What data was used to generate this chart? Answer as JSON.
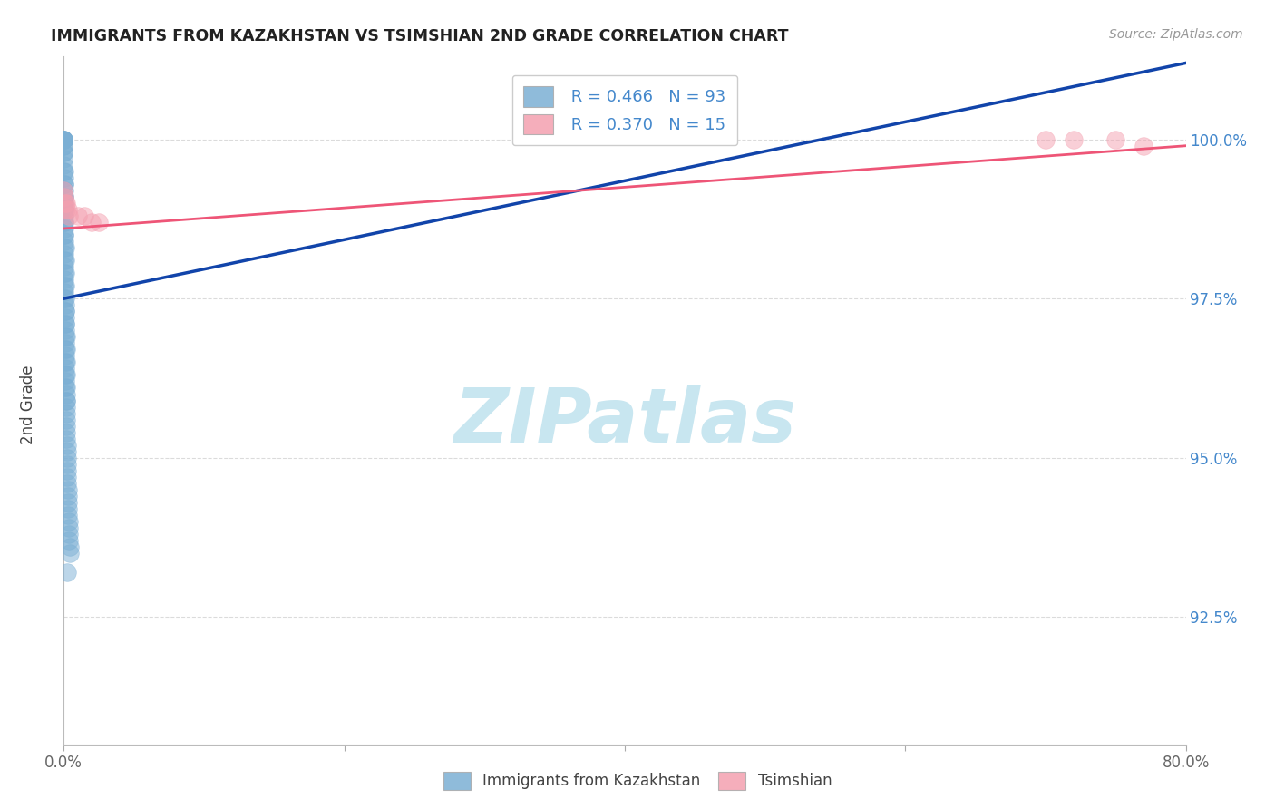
{
  "title": "IMMIGRANTS FROM KAZAKHSTAN VS TSIMSHIAN 2ND GRADE CORRELATION CHART",
  "source_text": "Source: ZipAtlas.com",
  "ylabel": "2nd Grade",
  "xlim": [
    0.0,
    80.0
  ],
  "ylim": [
    90.5,
    101.3
  ],
  "xtick_vals": [
    0.0,
    20.0,
    40.0,
    60.0,
    80.0
  ],
  "xticklabels": [
    "0.0%",
    "",
    "",
    "",
    "80.0%"
  ],
  "ytick_vals": [
    92.5,
    95.0,
    97.5,
    100.0
  ],
  "yticklabels": [
    "92.5%",
    "95.0%",
    "97.5%",
    "100.0%"
  ],
  "blue_fill_color": "#7BAFD4",
  "pink_fill_color": "#F4A0B0",
  "blue_line_color": "#1144AA",
  "pink_line_color": "#EE5577",
  "ytick_color": "#4488CC",
  "grid_color": "#cccccc",
  "watermark_color": "#C8E6F0",
  "legend_r1": "R = 0.466",
  "legend_n1": "N = 93",
  "legend_r2": "R = 0.370",
  "legend_n2": "N = 15",
  "legend_text_color": "#4488CC",
  "blue_x": [
    0.0,
    0.0,
    0.0,
    0.0,
    0.0,
    0.0,
    0.0,
    0.0,
    0.0,
    0.0,
    0.02,
    0.02,
    0.02,
    0.02,
    0.02,
    0.02,
    0.02,
    0.03,
    0.03,
    0.03,
    0.04,
    0.04,
    0.04,
    0.05,
    0.05,
    0.05,
    0.06,
    0.06,
    0.07,
    0.07,
    0.08,
    0.08,
    0.09,
    0.09,
    0.1,
    0.1,
    0.11,
    0.11,
    0.12,
    0.12,
    0.13,
    0.13,
    0.14,
    0.14,
    0.15,
    0.15,
    0.16,
    0.17,
    0.18,
    0.19,
    0.2,
    0.2,
    0.21,
    0.22,
    0.23,
    0.24,
    0.25,
    0.26,
    0.27,
    0.28,
    0.3,
    0.31,
    0.32,
    0.33,
    0.35,
    0.36,
    0.38,
    0.4,
    0.42,
    0.44,
    0.01,
    0.01,
    0.01,
    0.02,
    0.03,
    0.04,
    0.05,
    0.06,
    0.07,
    0.08,
    0.09,
    0.1,
    0.11,
    0.12,
    0.13,
    0.14,
    0.15,
    0.16,
    0.17,
    0.18,
    0.19,
    0.2,
    0.25
  ],
  "blue_y": [
    100.0,
    100.0,
    100.0,
    100.0,
    100.0,
    99.9,
    99.8,
    99.7,
    99.6,
    99.5,
    99.4,
    99.3,
    99.2,
    99.1,
    99.0,
    98.9,
    98.8,
    98.7,
    98.6,
    98.5,
    98.4,
    98.3,
    98.2,
    98.1,
    98.0,
    97.9,
    97.8,
    97.7,
    97.6,
    97.5,
    97.4,
    97.3,
    97.2,
    97.1,
    97.0,
    96.9,
    96.8,
    96.7,
    96.6,
    96.5,
    96.4,
    96.3,
    96.2,
    96.1,
    96.0,
    95.9,
    95.8,
    95.7,
    95.6,
    95.5,
    95.4,
    95.3,
    95.2,
    95.1,
    95.0,
    94.9,
    94.8,
    94.7,
    94.6,
    94.5,
    94.4,
    94.3,
    94.2,
    94.1,
    94.0,
    93.9,
    93.8,
    93.7,
    93.6,
    93.5,
    100.0,
    99.9,
    99.8,
    99.5,
    99.3,
    99.1,
    98.9,
    98.7,
    98.5,
    98.3,
    98.1,
    97.9,
    97.7,
    97.5,
    97.3,
    97.1,
    96.9,
    96.7,
    96.5,
    96.3,
    96.1,
    95.9,
    93.2
  ],
  "pink_x": [
    0.0,
    0.05,
    0.1,
    0.15,
    0.2,
    0.3,
    0.4,
    1.0,
    1.5,
    2.0,
    2.5,
    70.0,
    72.0,
    75.0,
    77.0
  ],
  "pink_y": [
    99.2,
    99.1,
    99.0,
    99.0,
    98.9,
    98.9,
    98.8,
    98.8,
    98.8,
    98.7,
    98.7,
    100.0,
    100.0,
    100.0,
    99.9
  ],
  "blue_trend": [
    0.0,
    80.0,
    97.5,
    101.2
  ],
  "pink_trend": [
    0.0,
    80.0,
    98.6,
    99.9
  ]
}
